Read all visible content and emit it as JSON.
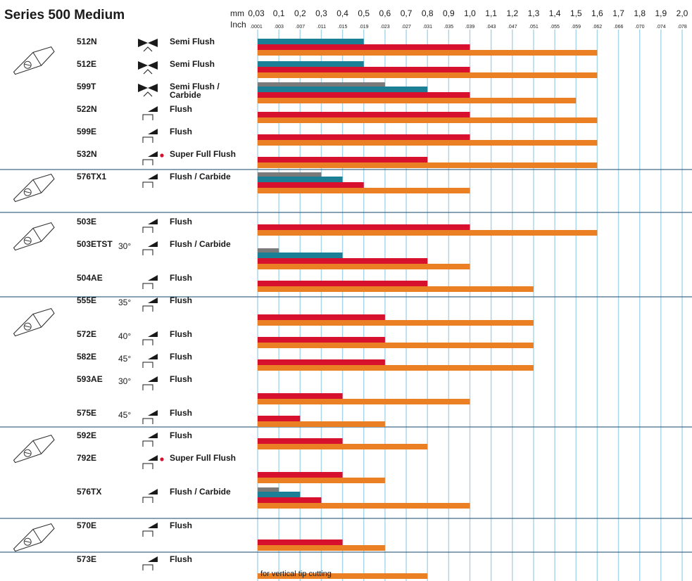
{
  "chart_data": {
    "type": "bar",
    "title": "Series 500 Medium",
    "x_unit_primary": "mm",
    "x_unit_secondary": "Inch",
    "xlim": [
      0,
      2.0
    ],
    "x_ticks_mm": [
      "0,03",
      "0,1",
      "0,2",
      "0,3",
      "0,4",
      "0,5",
      "0,6",
      "0,7",
      "0,8",
      "0,9",
      "1,0",
      "1,1",
      "1,2",
      "1,3",
      "1,4",
      "1,5",
      "1,6",
      "1,7",
      "1,8",
      "1,9",
      "2,0"
    ],
    "x_ticks_inch": [
      ".0001",
      ".003",
      ".007",
      ".011",
      ".015",
      ".019",
      ".023",
      ".027",
      ".031",
      ".035",
      ".039",
      ".043",
      ".047",
      ".051",
      ".055",
      ".059",
      ".062",
      ".066",
      ".070",
      ".074",
      ".078"
    ],
    "grid": "vertical",
    "colors": {
      "gray": "#7a7a7a",
      "teal": "#1b7f95",
      "red": "#d7102e",
      "orange": "#ea8023",
      "grid": "#a8d4ea"
    },
    "rows": [
      {
        "model": "512N",
        "angle": "",
        "cut": "Semi Flush",
        "icon": "semi-flush-cut-icon",
        "values": {
          "teal": 0.5,
          "red": 1.0,
          "orange": 1.6
        }
      },
      {
        "model": "512E",
        "angle": "",
        "cut": "Semi Flush",
        "icon": "semi-flush-cut-icon",
        "values": {
          "teal": 0.5,
          "red": 1.0,
          "orange": 1.6
        }
      },
      {
        "model": "599T",
        "angle": "",
        "cut": "Semi Flush / Carbide",
        "icon": "semi-flush-cut-icon",
        "values": {
          "gray": 0.6,
          "teal": 0.8,
          "red": 1.0,
          "orange": 1.5
        }
      },
      {
        "model": "522N",
        "angle": "",
        "cut": "Flush",
        "icon": "flush-cut-icon",
        "values": {
          "red": 1.0,
          "orange": 1.6
        }
      },
      {
        "model": "599E",
        "angle": "",
        "cut": "Flush",
        "icon": "flush-cut-icon",
        "values": {
          "red": 1.0,
          "orange": 1.6
        }
      },
      {
        "model": "532N",
        "angle": "",
        "cut": "Super Full Flush",
        "icon": "super-full-flush-cut-icon",
        "values": {
          "red": 0.8,
          "orange": 1.6
        }
      },
      {
        "model": "576TX1",
        "angle": "",
        "cut": "Flush / Carbide",
        "icon": "flush-cut-icon",
        "values": {
          "gray": 0.3,
          "teal": 0.4,
          "red": 0.5,
          "orange": 1.0
        }
      },
      {
        "model": "503E",
        "angle": "",
        "cut": "Flush",
        "icon": "flush-cut-icon",
        "values": {
          "red": 1.0,
          "orange": 1.6
        }
      },
      {
        "model": "503ETST",
        "angle": "30°",
        "cut": "Flush / Carbide",
        "icon": "flush-cut-icon",
        "values": {
          "gray": 0.1,
          "teal": 0.4,
          "red": 0.8,
          "orange": 1.0
        }
      },
      {
        "model": "504AE",
        "angle": "",
        "cut": "Flush",
        "icon": "flush-cut-icon",
        "values": {
          "red": 0.8,
          "orange": 1.3
        }
      },
      {
        "model": "555E",
        "angle": "35°",
        "cut": "Flush",
        "icon": "flush-cut-icon",
        "values": {
          "red": 0.6,
          "orange": 1.3
        }
      },
      {
        "model": "572E",
        "angle": "40°",
        "cut": "Flush",
        "icon": "flush-cut-icon",
        "values": {
          "red": 0.6,
          "orange": 1.3
        }
      },
      {
        "model": "582E",
        "angle": "45°",
        "cut": "Flush",
        "icon": "flush-cut-icon",
        "values": {
          "red": 0.6,
          "orange": 1.3
        }
      },
      {
        "model": "593AE",
        "angle": "30°",
        "cut": "Flush",
        "icon": "flush-cut-icon",
        "values": {
          "red": 0.4,
          "orange": 1.0
        }
      },
      {
        "model": "575E",
        "angle": "45°",
        "cut": "Flush",
        "icon": "flush-cut-icon",
        "values": {
          "red": 0.2,
          "orange": 0.6
        }
      },
      {
        "model": "592E",
        "angle": "",
        "cut": "Flush",
        "icon": "flush-cut-icon",
        "values": {
          "red": 0.4,
          "orange": 0.8
        }
      },
      {
        "model": "792E",
        "angle": "",
        "cut": "Super Full Flush",
        "icon": "super-full-flush-cut-icon",
        "values": {
          "red": 0.4,
          "orange": 0.6
        }
      },
      {
        "model": "576TX",
        "angle": "",
        "cut": "Flush / Carbide",
        "icon": "flush-cut-icon",
        "values": {
          "gray": 0.1,
          "teal": 0.2,
          "red": 0.3,
          "orange": 1.0
        }
      },
      {
        "model": "570E",
        "angle": "",
        "cut": "Flush",
        "icon": "flush-cut-icon",
        "values": {
          "red": 0.4,
          "orange": 0.6
        }
      },
      {
        "model": "573E",
        "angle": "",
        "cut": "Flush",
        "icon": "flush-cut-icon",
        "values": {
          "orange": 0.8
        },
        "note": "for vertical tip cutting"
      }
    ],
    "tool_groups": [
      {
        "icon": "pliers-icon",
        "rows": [
          "512N",
          "512E",
          "599T",
          "522N",
          "599E",
          "532N"
        ]
      },
      {
        "icon": "pliers-icon",
        "rows": [
          "576TX1"
        ]
      },
      {
        "icon": "angled-pliers-icon",
        "rows": [
          "503E",
          "503ETST",
          "504AE"
        ]
      },
      {
        "icon": "angled-pliers-icon",
        "rows": [
          "555E",
          "572E",
          "582E",
          "593AE",
          "575E"
        ]
      },
      {
        "icon": "pliers-icon",
        "rows": [
          "592E",
          "792E",
          "576TX"
        ]
      },
      {
        "icon": "pointed-pliers-icon",
        "rows": [
          "570E",
          "573E"
        ]
      }
    ]
  }
}
